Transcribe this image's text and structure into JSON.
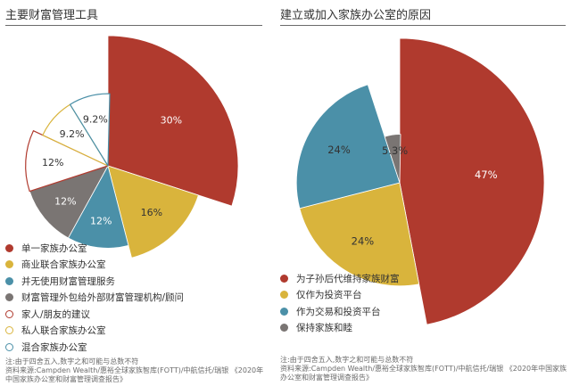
{
  "chart_data": [
    {
      "type": "pie",
      "variant": "polar-area",
      "title": "主要财富管理工具",
      "categories": [
        "单一家族办公室",
        "商业联合家族办公室",
        "并无使用财富管理服务",
        "财富管理外包给外部财富管理机构/顾问",
        "家人/朋友的建议",
        "私人联合家族办公室",
        "混合家族办公室"
      ],
      "values": [
        30,
        16,
        12,
        12,
        12,
        9.2,
        9.2
      ],
      "labels": [
        "30%",
        "16%",
        "12%",
        "12%",
        "12%",
        "9.2%",
        "9.2%"
      ],
      "colors": [
        "#b03a2e",
        "#d9b43c",
        "#4b90a8",
        "#7a7573",
        "#ffffff",
        "#ffffff",
        "#ffffff"
      ],
      "edge_colors": [
        "#b03a2e",
        "#d9b43c",
        "#4b90a8",
        "#7a7573",
        "#b03a2e",
        "#d9b43c",
        "#4b90a8"
      ],
      "label_colors": [
        "#ffffff",
        "#333333",
        "#ffffff",
        "#ffffff",
        "#333333",
        "#333333",
        "#333333"
      ],
      "note": "注:由于四舍五入,数字之和可能与总数不符",
      "source": "资料来源:Campden Wealth/惠裕全球家族智库(FOTT)/中航信托/瑞银 《2020年中国家族办公室和财富管理调查报告》"
    },
    {
      "type": "pie",
      "variant": "polar-area",
      "title": "建立或加入家族办公室的原因",
      "categories": [
        "为子孙后代维持家族财富",
        "仅作为投资平台",
        "作为交易和投资平台",
        "保持家族和睦"
      ],
      "values": [
        47,
        24,
        24,
        5.3
      ],
      "labels": [
        "47%",
        "24%",
        "24%",
        "5.3%"
      ],
      "colors": [
        "#b03a2e",
        "#d9b43c",
        "#4b90a8",
        "#7a7573"
      ],
      "edge_colors": [
        "#b03a2e",
        "#d9b43c",
        "#4b90a8",
        "#7a7573"
      ],
      "label_colors": [
        "#ffffff",
        "#333333",
        "#333333",
        "#333333"
      ],
      "note": "注:由于四舍五入,数字之和可能与总数不符",
      "source": "资料来源:Campden Wealth/惠裕全球家族智库(FOTT)/中航信托/瑞银 《2020年中国家族办公室和财富管理调查报告》"
    }
  ]
}
